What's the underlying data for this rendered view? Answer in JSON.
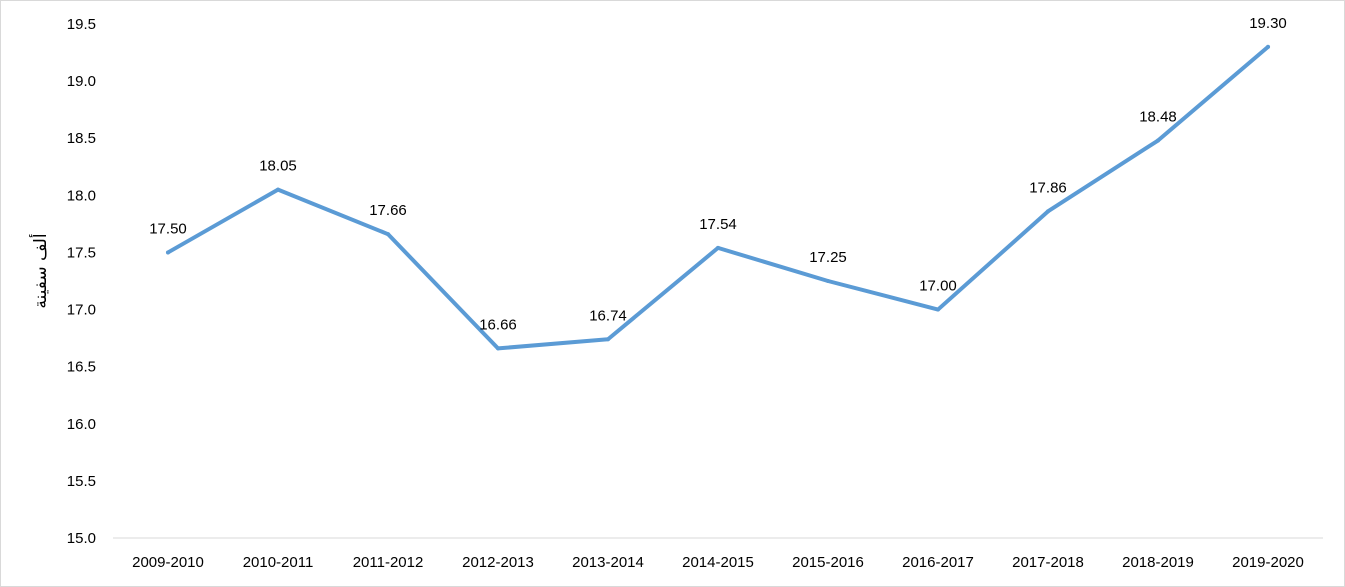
{
  "chart_data": {
    "type": "line",
    "title": "",
    "xlabel": "",
    "ylabel": "ألف سفينة",
    "categories": [
      "2009-2010",
      "2010-2011",
      "2011-2012",
      "2012-2013",
      "2013-2014",
      "2014-2015",
      "2015-2016",
      "2016-2017",
      "2017-2018",
      "2018-2019",
      "2019-2020"
    ],
    "series": [
      {
        "values": [
          17.5,
          18.05,
          17.66,
          16.66,
          16.74,
          17.54,
          17.25,
          17.0,
          17.86,
          18.48,
          19.3
        ],
        "data_labels": [
          "17.50",
          "18.05",
          "17.66",
          "16.66",
          "16.74",
          "17.54",
          "17.25",
          "17.00",
          "17.86",
          "18.48",
          "19.30"
        ],
        "color": "#5b9bd5"
      }
    ],
    "ylim": [
      15.0,
      19.5
    ],
    "yticks": [
      "15.0",
      "15.5",
      "16.0",
      "16.5",
      "17.0",
      "17.5",
      "18.0",
      "18.5",
      "19.0",
      "19.5"
    ],
    "grid": false,
    "legend": "none"
  }
}
